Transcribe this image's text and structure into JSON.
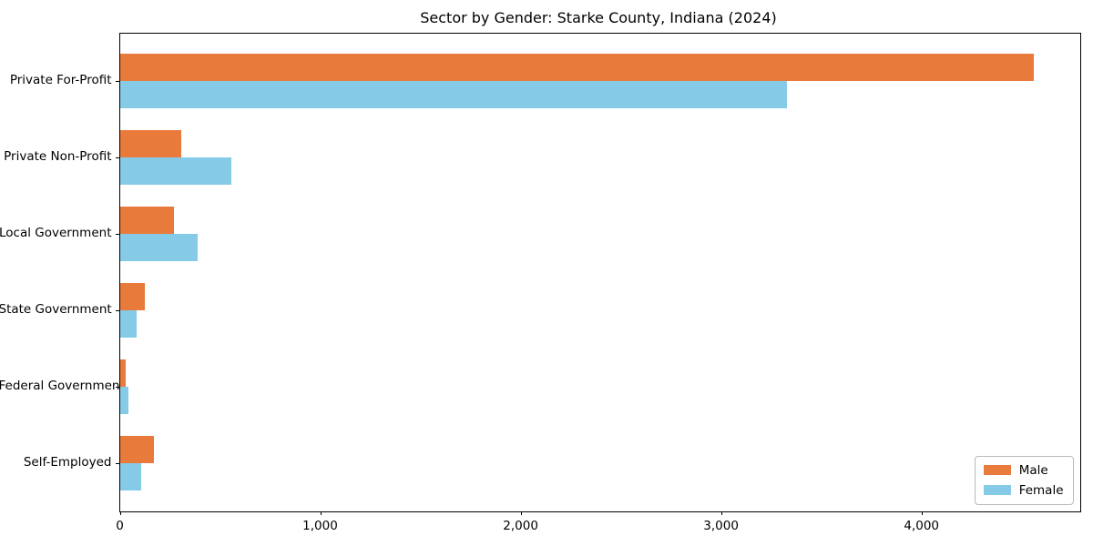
{
  "title": "Sector by Gender: Starke County, Indiana (2024)",
  "chart_data": {
    "type": "bar",
    "orientation": "horizontal",
    "title": "Sector by Gender: Starke County, Indiana (2024)",
    "xlabel": "",
    "ylabel": "",
    "categories": [
      "Private For-Profit",
      "Private Non-Profit",
      "Local Government",
      "State Government",
      "Federal Government",
      "Self-Employed"
    ],
    "series": [
      {
        "name": "Male",
        "color": "#e87a3c",
        "values": [
          4560,
          305,
          270,
          127,
          30,
          171
        ]
      },
      {
        "name": "Female",
        "color": "#85cbe8",
        "values": [
          3330,
          557,
          388,
          85,
          45,
          107
        ]
      }
    ],
    "xlim": [
      0,
      4790
    ],
    "xticks": [
      0,
      1000,
      2000,
      3000,
      4000
    ],
    "xtick_labels": [
      "0",
      "1,000",
      "2,000",
      "3,000",
      "4,000"
    ],
    "grid": false,
    "legend_position": "lower right"
  }
}
